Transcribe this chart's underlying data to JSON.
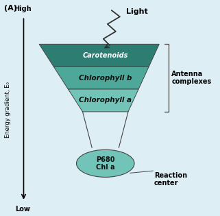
{
  "title_label": "(A)",
  "light_label": "Light",
  "high_label": "High",
  "low_label": "Low",
  "ylabel": "Energy gradient, E₀",
  "antenna_label": "Antenna\ncomplexes",
  "reaction_label": "Reaction\ncenter",
  "carotenoids_label": "Carotenoids",
  "chl_b_label": "Chlorophyll b",
  "chl_a_label": "Chlorophyll a",
  "p680_label": "P680\nChl a",
  "funnel_top_color": "#2e7d72",
  "funnel_mid_color": "#4da899",
  "funnel_bot_color": "#72c4b8",
  "ellipse_color": "#72c4b8",
  "bg_color": "#ddeef5",
  "funnel_edge_color": "#444444",
  "text_dark": "#111111",
  "text_white": "#ffffff"
}
